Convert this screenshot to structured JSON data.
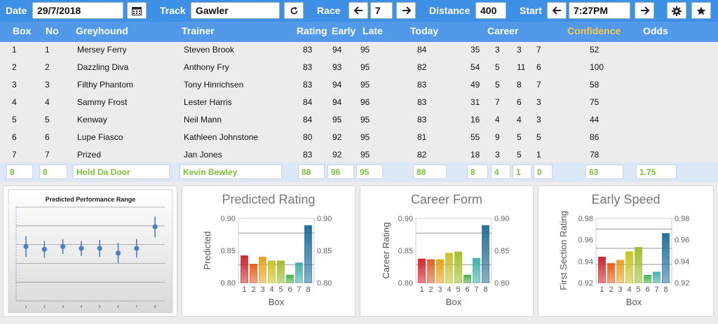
{
  "toolbar": {
    "date_label": "Date",
    "date_value": "29/7/2018",
    "track_label": "Track",
    "track_value": "Gawler",
    "race_label": "Race",
    "race_value": "7",
    "distance_label": "Distance",
    "distance_value": "400",
    "start_label": "Start",
    "start_value": "7:27PM",
    "icons": [
      "calendar-icon",
      "refresh-icon",
      "arrow-left-icon",
      "arrow-right-icon",
      "arrow-left-icon",
      "arrow-right-icon",
      "gear-icon",
      "star-icon"
    ]
  },
  "columns": {
    "box": "Box",
    "no": "No",
    "greyhound": "Greyhound",
    "trainer": "Trainer",
    "rating": "Rating",
    "early": "Early",
    "late": "Late",
    "today": "Today",
    "career": "Career",
    "confidence": "Confidence",
    "odds": "Odds"
  },
  "colors": {
    "header": "#5299ea",
    "toolbar": "#3e8fe6",
    "confidence_header": "#f5c94a",
    "selected_text": "#7cc13a"
  },
  "rows": [
    {
      "box": "1",
      "no": "1",
      "greyhound": "Mersey Ferry",
      "trainer": "Steven Brook",
      "rating": "83",
      "early": "94",
      "late": "95",
      "today": "84",
      "c1": "35",
      "c2": "3",
      "c3": "3",
      "c4": "7",
      "confidence": "52",
      "odds": ""
    },
    {
      "box": "2",
      "no": "2",
      "greyhound": "Dazzling Diva",
      "trainer": "Anthony Fry",
      "rating": "83",
      "early": "93",
      "late": "95",
      "today": "82",
      "c1": "54",
      "c2": "5",
      "c3": "11",
      "c4": "6",
      "confidence": "100",
      "odds": ""
    },
    {
      "box": "3",
      "no": "3",
      "greyhound": "Filthy Phantom",
      "trainer": "Tony Hinrichsen",
      "rating": "83",
      "early": "94",
      "late": "95",
      "today": "83",
      "c1": "49",
      "c2": "5",
      "c3": "8",
      "c4": "7",
      "confidence": "58",
      "odds": ""
    },
    {
      "box": "4",
      "no": "4",
      "greyhound": "Sammy Frost",
      "trainer": "Lester Harris",
      "rating": "84",
      "early": "94",
      "late": "96",
      "today": "83",
      "c1": "31",
      "c2": "7",
      "c3": "6",
      "c4": "3",
      "confidence": "75",
      "odds": ""
    },
    {
      "box": "5",
      "no": "5",
      "greyhound": "Kenway",
      "trainer": "Neil Mann",
      "rating": "84",
      "early": "95",
      "late": "95",
      "today": "83",
      "c1": "16",
      "c2": "4",
      "c3": "4",
      "c4": "3",
      "confidence": "44",
      "odds": ""
    },
    {
      "box": "6",
      "no": "6",
      "greyhound": "Lupe Fiasco",
      "trainer": "Kathleen Johnstone",
      "rating": "80",
      "early": "92",
      "late": "95",
      "today": "81",
      "c1": "55",
      "c2": "9",
      "c3": "5",
      "c4": "5",
      "confidence": "86",
      "odds": ""
    },
    {
      "box": "7",
      "no": "7",
      "greyhound": "Prized",
      "trainer": "Jan Jones",
      "rating": "83",
      "early": "92",
      "late": "95",
      "today": "82",
      "c1": "18",
      "c2": "3",
      "c3": "5",
      "c4": "1",
      "confidence": "78",
      "odds": ""
    }
  ],
  "selected_row": {
    "box": "8",
    "no": "8",
    "greyhound": "Hold Da Door",
    "trainer": "Kevin Bewley",
    "rating": "88",
    "early": "96",
    "late": "95",
    "today": "88",
    "c1": "8",
    "c2": "4",
    "c3": "1",
    "c4": "0",
    "confidence": "63",
    "odds": "1.75"
  },
  "chart_data": [
    {
      "type": "scatter",
      "title": "Predicted Performance Range",
      "x": [
        1,
        2,
        3,
        4,
        5,
        6,
        7,
        8
      ],
      "y": [
        0.58,
        0.55,
        0.58,
        0.56,
        0.56,
        0.51,
        0.56,
        0.79
      ],
      "error": [
        0.11,
        0.09,
        0.08,
        0.08,
        0.09,
        0.11,
        0.1,
        0.11
      ],
      "ylim": [
        0,
        1
      ],
      "xlabel": "",
      "ylabel": "",
      "grid": true
    },
    {
      "type": "bar",
      "title": "Predicted Rating",
      "categories": [
        "1",
        "2",
        "3",
        "4",
        "5",
        "6",
        "7",
        "8"
      ],
      "values": [
        0.842,
        0.829,
        0.84,
        0.834,
        0.834,
        0.812,
        0.831,
        0.889
      ],
      "ylim": [
        0.8,
        0.9
      ],
      "yticks": [
        "0.80",
        "0.85",
        "0.90"
      ],
      "xlabel": "Box",
      "ylabel": "Predicted",
      "reference_lines": [
        0.877,
        0.828
      ],
      "colors": [
        "#d3242e",
        "#e65e1d",
        "#e7a21c",
        "#c9c127",
        "#9dc02a",
        "#47b04a",
        "#3fb1a6",
        "#256f97"
      ]
    },
    {
      "type": "bar",
      "title": "Career Form",
      "categories": [
        "1",
        "2",
        "3",
        "4",
        "5",
        "6",
        "7",
        "8"
      ],
      "values": [
        0.837,
        0.836,
        0.836,
        0.846,
        0.848,
        0.812,
        0.838,
        0.889
      ],
      "ylim": [
        0.8,
        0.9
      ],
      "yticks": [
        "0.80",
        "0.85",
        "0.90"
      ],
      "xlabel": "Box",
      "ylabel": "Career Rating",
      "reference_lines": [
        0.877,
        0.828
      ],
      "colors": [
        "#d3242e",
        "#e65e1d",
        "#e7a21c",
        "#c9c127",
        "#9dc02a",
        "#47b04a",
        "#3fb1a6",
        "#256f97"
      ]
    },
    {
      "type": "bar",
      "title": "Early Speed",
      "categories": [
        "1",
        "2",
        "3",
        "4",
        "5",
        "6",
        "7",
        "8"
      ],
      "values": [
        0.944,
        0.938,
        0.941,
        0.949,
        0.953,
        0.927,
        0.93,
        0.966
      ],
      "ylim": [
        0.92,
        0.98
      ],
      "yticks": [
        "0.92",
        "0.94",
        "0.96",
        "0.98"
      ],
      "xlabel": "Box",
      "ylabel": "First Section Rating",
      "reference_lines": [
        0.97,
        0.952,
        0.937
      ],
      "colors": [
        "#d3242e",
        "#e65e1d",
        "#e7a21c",
        "#c9c127",
        "#9dc02a",
        "#47b04a",
        "#3fb1a6",
        "#256f97"
      ]
    }
  ]
}
